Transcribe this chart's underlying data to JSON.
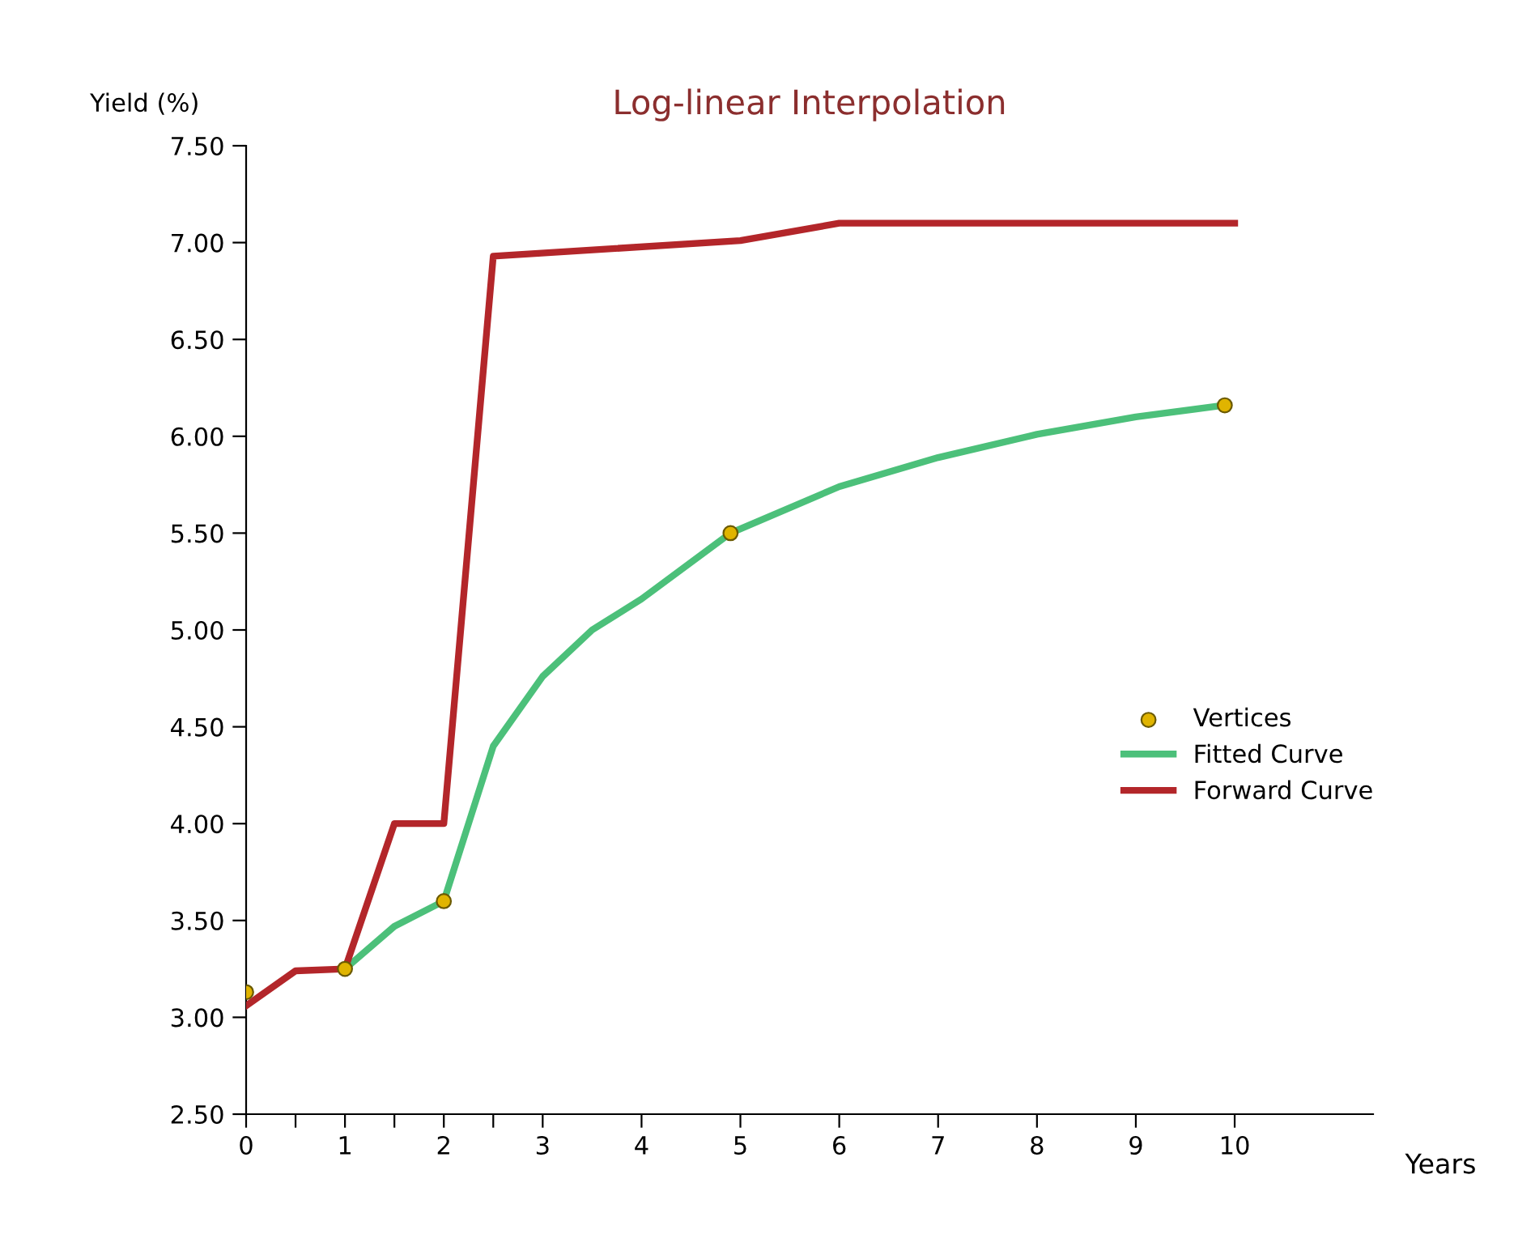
{
  "chart_data": {
    "type": "line",
    "title": "Log-linear Interpolation",
    "xlabel": "Years",
    "ylabel": "Yield (%)",
    "xlim": [
      0,
      11.4
    ],
    "ylim": [
      2.5,
      7.5
    ],
    "xticks": [
      0,
      {
        "value": 0.5,
        "label": null
      },
      1,
      {
        "value": 1.5,
        "label": null
      },
      2,
      {
        "value": 2.5,
        "label": null
      },
      3,
      4,
      5,
      6,
      7,
      8,
      9,
      10
    ],
    "yticks": [
      {
        "value": 2.5,
        "label": "2.50"
      },
      {
        "value": 3.0,
        "label": "3.00"
      },
      {
        "value": 3.5,
        "label": "3.50"
      },
      {
        "value": 4.0,
        "label": "4.00"
      },
      {
        "value": 4.5,
        "label": "4.50"
      },
      {
        "value": 5.0,
        "label": "5.00"
      },
      {
        "value": 5.5,
        "label": "5.50"
      },
      {
        "value": 6.0,
        "label": "6.00"
      },
      {
        "value": 6.5,
        "label": "6.50"
      },
      {
        "value": 7.0,
        "label": "7.00"
      },
      {
        "value": 7.5,
        "label": "7.50"
      }
    ],
    "grid": false,
    "legend": "right",
    "series": [
      {
        "name": "Vertices",
        "type": "scatter",
        "color": "#e0b400",
        "marker": "circle",
        "x": [
          0,
          1,
          2,
          4.9,
          9.9
        ],
        "values": [
          3.13,
          3.25,
          3.6,
          5.5,
          6.16
        ]
      },
      {
        "name": "Fitted Curve",
        "color": "#4cc07a",
        "x": [
          1,
          1.5,
          2,
          2.5,
          3,
          3.5,
          4,
          4.9,
          6,
          7,
          8,
          9,
          9.9
        ],
        "values": [
          3.25,
          3.47,
          3.6,
          4.4,
          4.76,
          5.0,
          5.16,
          5.5,
          5.74,
          5.89,
          6.01,
          6.1,
          6.16
        ]
      },
      {
        "name": "Forward Curve",
        "color": "#b3262a",
        "x": [
          0,
          0.5,
          1,
          1.5,
          2,
          2.5,
          5,
          6,
          10
        ],
        "values": [
          3.06,
          3.24,
          3.25,
          4.0,
          4.0,
          6.93,
          7.01,
          7.1,
          7.1
        ]
      }
    ]
  }
}
